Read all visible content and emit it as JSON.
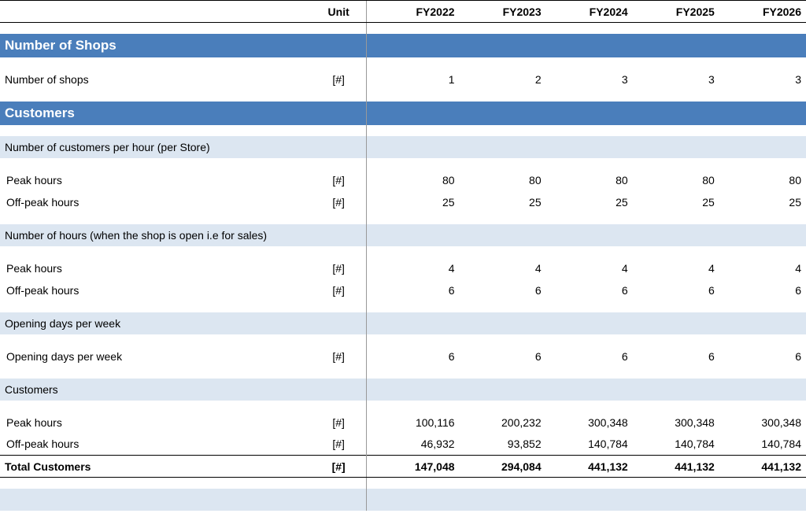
{
  "header": {
    "unit_label": "Unit",
    "years": [
      "FY2022",
      "FY2023",
      "FY2024",
      "FY2025",
      "FY2026"
    ]
  },
  "unit_symbol": "[#]",
  "sections": {
    "shops": {
      "title": "Number of Shops",
      "row": {
        "label": "Number of shops",
        "values": [
          "1",
          "2",
          "3",
          "3",
          "3"
        ]
      }
    },
    "customers": {
      "title": "Customers",
      "sub_per_hour": {
        "title": "Number of customers per hour (per Store)",
        "peak": {
          "label": "Peak hours",
          "values": [
            "80",
            "80",
            "80",
            "80",
            "80"
          ]
        },
        "offpeak": {
          "label": "Off-peak hours",
          "values": [
            "25",
            "25",
            "25",
            "25",
            "25"
          ]
        }
      },
      "sub_hours": {
        "title": "Number of hours (when the shop is open i.e for sales)",
        "peak": {
          "label": "Peak hours",
          "values": [
            "4",
            "4",
            "4",
            "4",
            "4"
          ]
        },
        "offpeak": {
          "label": "Off-peak hours",
          "values": [
            "6",
            "6",
            "6",
            "6",
            "6"
          ]
        }
      },
      "sub_days": {
        "title": "Opening days per week",
        "row": {
          "label": "Opening days per week",
          "values": [
            "6",
            "6",
            "6",
            "6",
            "6"
          ]
        }
      },
      "sub_totals": {
        "title": "Customers",
        "peak": {
          "label": "Peak hours",
          "values": [
            "100,116",
            "200,232",
            "300,348",
            "300,348",
            "300,348"
          ]
        },
        "offpeak": {
          "label": "Off-peak hours",
          "values": [
            "46,932",
            "93,852",
            "140,784",
            "140,784",
            "140,784"
          ]
        },
        "total": {
          "label": "Total Customers",
          "values": [
            "147,048",
            "294,084",
            "441,132",
            "441,132",
            "441,132"
          ]
        }
      }
    }
  },
  "colors": {
    "section_bg": "#4a7ebb",
    "subheader_bg": "#dce6f1",
    "border": "#000000",
    "vline": "#999999"
  }
}
